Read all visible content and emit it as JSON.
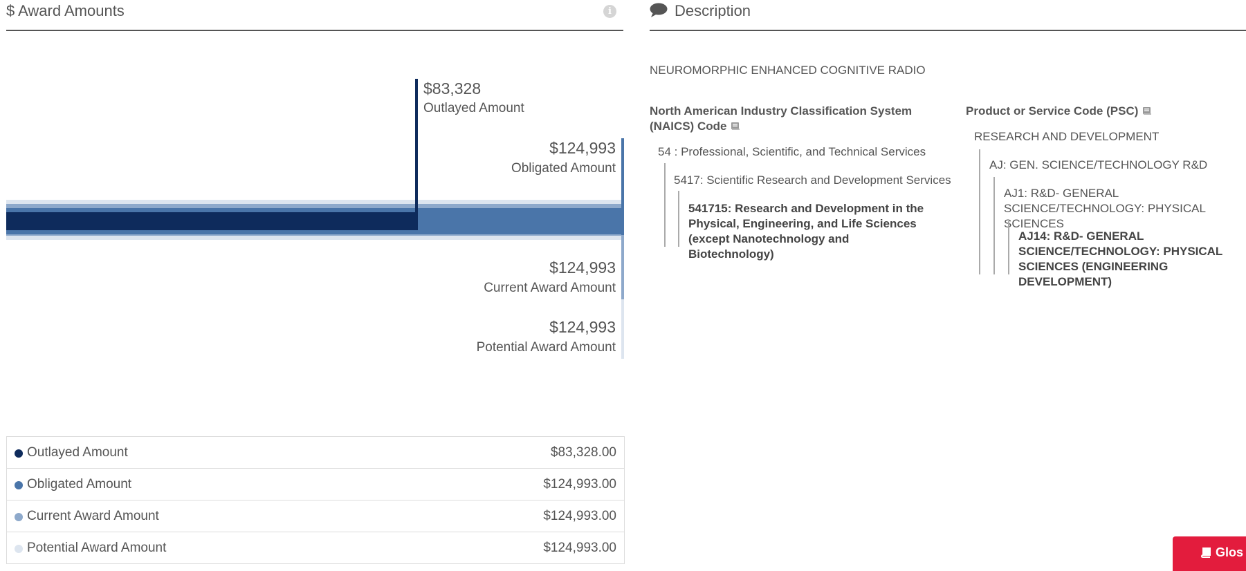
{
  "award_section": {
    "title": "$ Award Amounts",
    "info_icon": "i"
  },
  "description_section": {
    "title": "Description",
    "description_text": "NEUROMORPHIC ENHANCED COGNITIVE RADIO",
    "naics": {
      "title": "North American Industry Classification System (NAICS)  Code",
      "levels": [
        "54 : Professional, Scientific, and Technical Services",
        "5417: Scientific Research and Development Services",
        "541715: Research and Development in the Physical, Engineering, and Life Sciences (except Nanotechnology and Biotechnology)"
      ]
    },
    "psc": {
      "title": "Product or Service Code  (PSC)",
      "levels": [
        "RESEARCH AND DEVELOPMENT",
        "AJ: GEN. SCIENCE/TECHNOLOGY R&D",
        "AJ1: R&D- GENERAL SCIENCE/TECHNOLOGY: PHYSICAL SCIENCES",
        "AJ14: R&D- GENERAL SCIENCE/TECHNOLOGY: PHYSICAL SCIENCES (ENGINEERING DEVELOPMENT)"
      ]
    }
  },
  "chart_data": {
    "type": "bar",
    "categories": [
      "Outlayed Amount",
      "Obligated Amount",
      "Current Award Amount",
      "Potential Award Amount"
    ],
    "values": [
      83328,
      124993,
      124993,
      124993
    ],
    "value_labels": [
      "$83,328",
      "$124,993",
      "$124,993",
      "$124,993"
    ],
    "max": 124993,
    "colors": [
      "#0e2b5c",
      "#4a75a9",
      "#8ea9cb",
      "#dde5ef"
    ]
  },
  "legend": {
    "rows": [
      {
        "label": "Outlayed Amount",
        "value": "$83,328.00",
        "color": "#0e2b5c"
      },
      {
        "label": "Obligated Amount",
        "value": "$124,993.00",
        "color": "#4a75a9"
      },
      {
        "label": "Current Award Amount",
        "value": "$124,993.00",
        "color": "#8ea9cb"
      },
      {
        "label": "Potential Award Amount",
        "value": "$124,993.00",
        "color": "#dde5ef"
      }
    ]
  },
  "glossary": {
    "label": "Glos"
  }
}
